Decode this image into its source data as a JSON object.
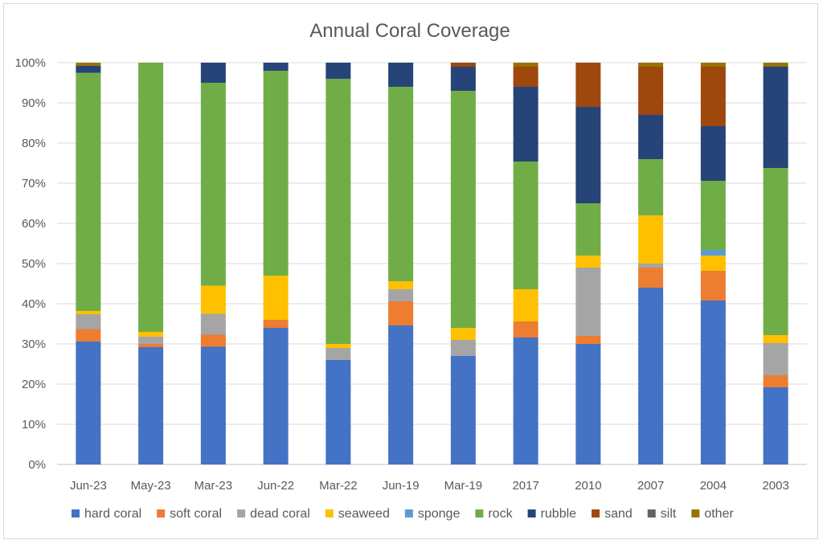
{
  "chart_data": {
    "type": "bar",
    "stacked": true,
    "normalized": true,
    "title": "Annual Coral Coverage",
    "xlabel": "",
    "ylabel": "",
    "ylim": [
      0,
      100
    ],
    "y_ticks": [
      "0%",
      "10%",
      "20%",
      "30%",
      "40%",
      "50%",
      "60%",
      "70%",
      "80%",
      "90%",
      "100%"
    ],
    "grid": "horizontal",
    "legend_position": "bottom",
    "categories": [
      "Jun-23",
      "May-23",
      "Mar-23",
      "Jun-22",
      "Mar-22",
      "Jun-19",
      "Mar-19",
      "2017",
      "2010",
      "2007",
      "2004",
      "2003"
    ],
    "series": [
      {
        "name": "hard coral",
        "color": "#4472C4",
        "values": [
          30.6,
          29.2,
          29.3,
          34.0,
          26.0,
          34.6,
          27.0,
          31.6,
          30.0,
          44.0,
          40.8,
          19.2
        ]
      },
      {
        "name": "soft coral",
        "color": "#ED7D31",
        "values": [
          3.1,
          0.8,
          3.0,
          2.0,
          0.0,
          6.0,
          0.0,
          4.0,
          2.0,
          5.0,
          7.4,
          3.0
        ]
      },
      {
        "name": "dead coral",
        "color": "#A5A5A5",
        "values": [
          3.7,
          1.8,
          5.2,
          0.0,
          3.0,
          3.0,
          4.0,
          0.0,
          17.0,
          1.0,
          0.0,
          8.0
        ]
      },
      {
        "name": "seaweed",
        "color": "#FFC000",
        "values": [
          0.8,
          1.2,
          7.0,
          11.0,
          1.0,
          2.0,
          3.0,
          8.0,
          3.0,
          12.0,
          3.8,
          2.0
        ]
      },
      {
        "name": "sponge",
        "color": "#5B9BD5",
        "values": [
          0.0,
          0.0,
          0.0,
          0.0,
          0.0,
          0.0,
          0.0,
          0.0,
          0.0,
          0.0,
          1.4,
          0.0
        ]
      },
      {
        "name": "rock",
        "color": "#70AD47",
        "values": [
          59.3,
          67.0,
          50.5,
          51.0,
          66.0,
          48.4,
          59.0,
          31.8,
          13.0,
          14.0,
          17.2,
          41.6
        ]
      },
      {
        "name": "rubble",
        "color": "#264478",
        "values": [
          1.7,
          0.0,
          5.0,
          2.0,
          4.0,
          6.0,
          6.0,
          18.6,
          24.0,
          11.0,
          13.6,
          25.2
        ]
      },
      {
        "name": "sand",
        "color": "#9E480E",
        "values": [
          0.0,
          0.0,
          0.0,
          0.0,
          0.0,
          0.0,
          1.0,
          5.0,
          11.0,
          12.0,
          14.8,
          0.0
        ]
      },
      {
        "name": "silt",
        "color": "#636363",
        "values": [
          0.0,
          0.0,
          0.0,
          0.0,
          0.0,
          0.0,
          0.0,
          0.0,
          0.0,
          0.0,
          0.0,
          0.0
        ]
      },
      {
        "name": "other",
        "color": "#997300",
        "values": [
          0.8,
          0.0,
          0.0,
          0.0,
          0.0,
          0.0,
          0.0,
          1.0,
          0.0,
          1.0,
          1.0,
          1.0
        ]
      }
    ]
  }
}
